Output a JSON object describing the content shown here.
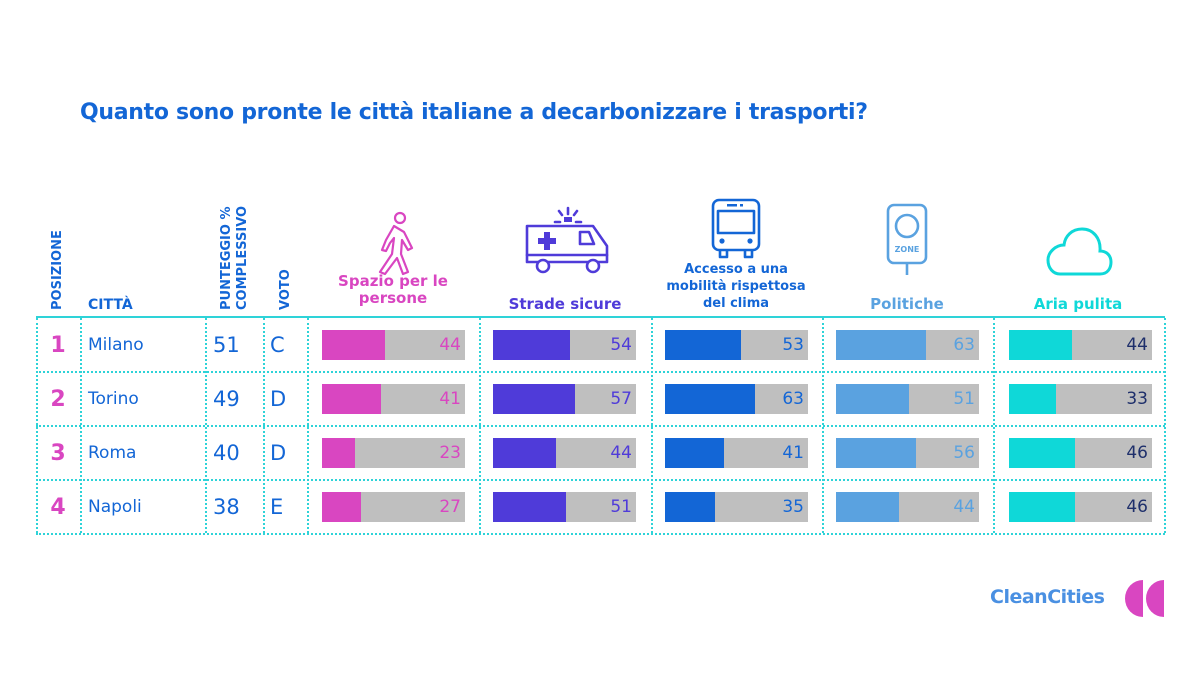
{
  "title": "Quanto sono pronte le città italiane a decarbonizzare i trasporti?",
  "headers": {
    "position": "POSIZIONE",
    "city": "CITTÀ",
    "score_line1": "PUNTEGGIO %",
    "score_line2": "COMPLESSIVO",
    "grade": "VOTO"
  },
  "categories": [
    {
      "label_lines": [
        "Spazio per le",
        "persone"
      ],
      "icon": "pedestrian-icon",
      "color": "#d946c1",
      "value_color": "#d946c1"
    },
    {
      "label_lines": [
        "Strade sicure"
      ],
      "icon": "ambulance-icon",
      "color": "#4f3bd9",
      "value_color": "#4f3bd9"
    },
    {
      "label_lines": [
        "Accesso a una",
        "mobilità rispettosa",
        "del clima"
      ],
      "icon": "bus-icon",
      "color": "#1366d6",
      "value_color": "#1366d6"
    },
    {
      "label_lines": [
        "Politiche"
      ],
      "icon": "zone-sign-icon",
      "color": "#5aa2e0",
      "value_color": "#5aa2e0",
      "icon_text": "ZONE"
    },
    {
      "label_lines": [
        "Aria pulita"
      ],
      "icon": "cloud-icon",
      "color": "#0fd8d8",
      "value_color": "#1e2f6b"
    }
  ],
  "chart_data": {
    "type": "table",
    "title": "Quanto sono pronte le città italiane a decarbonizzare i trasporti?",
    "columns": [
      "POSIZIONE",
      "CITTÀ",
      "PUNTEGGIO % COMPLESSIVO",
      "VOTO",
      "Spazio per le persone",
      "Strade sicure",
      "Accesso a una mobilità rispettosa del clima",
      "Politiche",
      "Aria pulita"
    ],
    "scale_max": 100,
    "rows": [
      {
        "position": "1",
        "city": "Milano",
        "score": "51",
        "grade": "C",
        "values": [
          44,
          54,
          53,
          63,
          44
        ]
      },
      {
        "position": "2",
        "city": "Torino",
        "score": "49",
        "grade": "D",
        "values": [
          41,
          57,
          63,
          51,
          33
        ]
      },
      {
        "position": "3",
        "city": "Roma",
        "score": "40",
        "grade": "D",
        "values": [
          23,
          44,
          41,
          56,
          46
        ]
      },
      {
        "position": "4",
        "city": "Napoli",
        "score": "38",
        "grade": "E",
        "values": [
          27,
          51,
          35,
          44,
          46
        ]
      }
    ]
  },
  "logo": {
    "text": "CleanCities",
    "text_color": "#4a90e2",
    "mark_color": "#d946c1"
  }
}
